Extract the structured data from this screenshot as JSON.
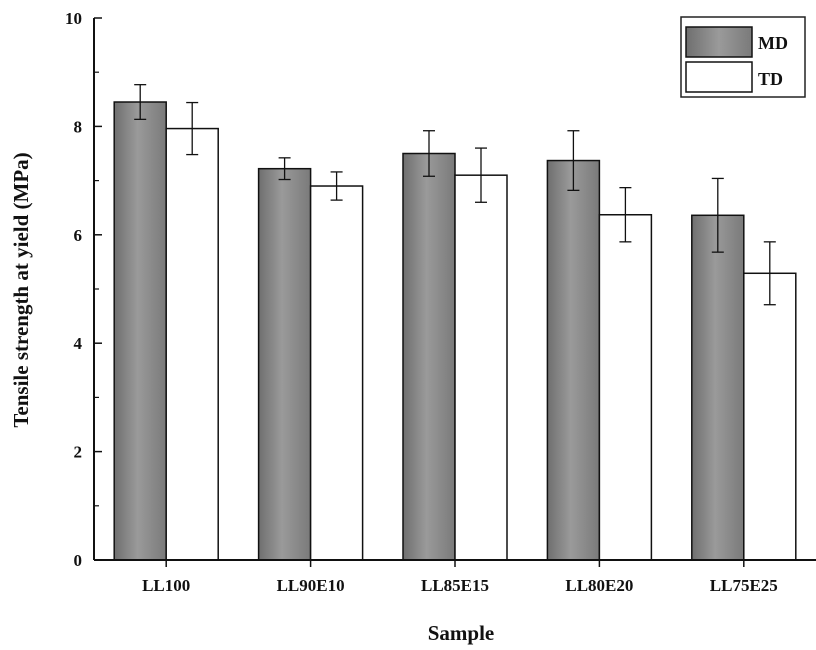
{
  "chart_data": {
    "type": "bar",
    "title": "",
    "xlabel": "Sample",
    "ylabel": "Tensile strength at yield (MPa)",
    "categories": [
      "LL100",
      "LL90E10",
      "LL85E15",
      "LL80E20",
      "LL75E25"
    ],
    "series": [
      {
        "name": "MD",
        "values": [
          8.45,
          7.22,
          7.5,
          7.37,
          6.36
        ],
        "errors": [
          0.32,
          0.2,
          0.42,
          0.55,
          0.68
        ],
        "color": "#888888"
      },
      {
        "name": "TD",
        "values": [
          7.96,
          6.9,
          7.1,
          6.37,
          5.29
        ],
        "errors": [
          0.48,
          0.26,
          0.5,
          0.5,
          0.58
        ],
        "color": "#ffffff"
      }
    ],
    "ylim": [
      0,
      10
    ],
    "yticks": [
      "0",
      "2",
      "4",
      "6",
      "8",
      "10"
    ],
    "grid": false,
    "legend_position": "top-right"
  }
}
